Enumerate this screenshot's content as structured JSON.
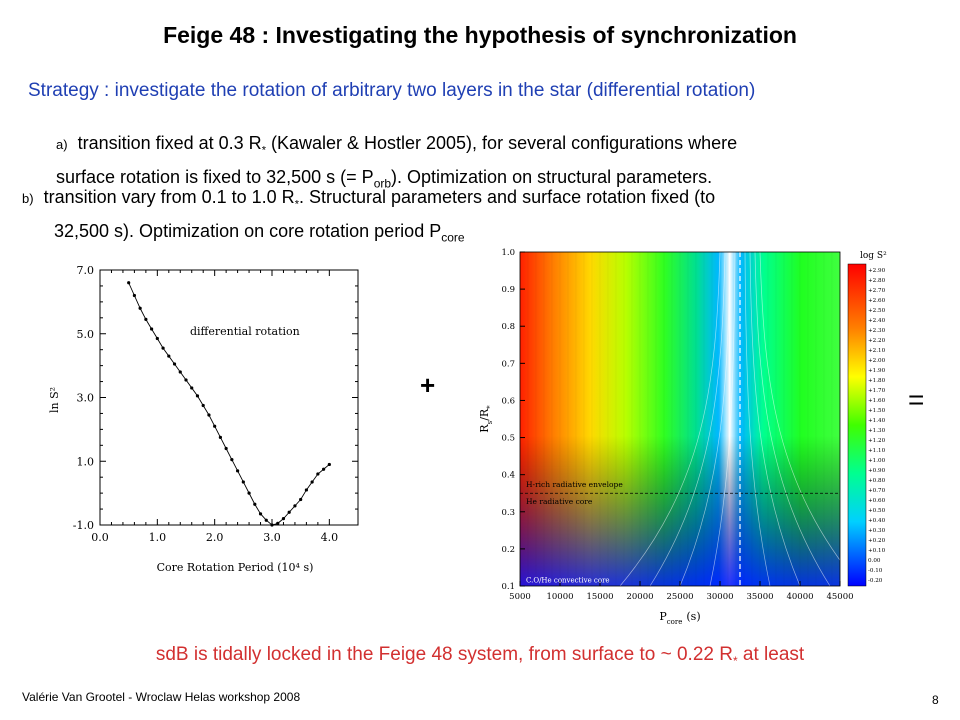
{
  "slide": {
    "title": "Feige 48 : Investigating the hypothesis of synchronization",
    "strategy": "Strategy : investigate the rotation of arbitrary two layers in the star (differential rotation)",
    "item_a": {
      "label": "a)",
      "line1": "transition fixed at 0.3 R",
      "line1_sub": "*",
      "line1_rest": " (Kawaler & Hostler 2005), for several configurations where",
      "line2_pre": "surface rotation is fixed to 32,500 s (",
      "line2_eq": "= P",
      "line2_sub": "orb",
      "line2_post": "). Optimization on structural parameters."
    },
    "item_b": {
      "label": "b)",
      "line1": "transition vary from 0.1 to 1.0 R",
      "line1_sub": "*",
      "line1_rest": ". Structural parameters and surface rotation fixed (to",
      "line2": "32,500 s). Optimization on core rotation period P",
      "line2_sub": "core"
    },
    "plus": "+",
    "equals": "=",
    "conclusion_pre": "sdB is tidally locked in the Feige 48 system, from surface to ~ 0.22 R",
    "conclusion_sub": "*",
    "conclusion_post": " at least",
    "footer": "Valérie Van Grootel - Wroclaw Helas workshop 2008",
    "page_number": "8"
  },
  "chart_data": [
    {
      "type": "line",
      "title": "",
      "annotation": "differential rotation",
      "xlabel": "Core Rotation Period (10⁴ s)",
      "ylabel": "ln S²",
      "xlim": [
        0.0,
        4.5
      ],
      "ylim": [
        -1.0,
        7.0
      ],
      "xticks": [
        "0.0",
        "1.0",
        "2.0",
        "3.0",
        "4.0"
      ],
      "yticks": [
        "-1.0",
        "1.0",
        "3.0",
        "5.0",
        "7.0"
      ],
      "x": [
        0.5,
        0.6,
        0.7,
        0.8,
        0.9,
        1.0,
        1.1,
        1.2,
        1.3,
        1.4,
        1.5,
        1.6,
        1.7,
        1.8,
        1.9,
        2.0,
        2.1,
        2.2,
        2.3,
        2.4,
        2.5,
        2.6,
        2.7,
        2.8,
        2.9,
        3.0,
        3.1,
        3.2,
        3.3,
        3.4,
        3.5,
        3.6,
        3.7,
        3.8,
        3.9,
        4.0
      ],
      "y": [
        6.6,
        6.2,
        5.8,
        5.45,
        5.15,
        4.85,
        4.55,
        4.3,
        4.05,
        3.8,
        3.55,
        3.3,
        3.05,
        2.75,
        2.45,
        2.1,
        1.75,
        1.4,
        1.05,
        0.7,
        0.35,
        0.0,
        -0.35,
        -0.65,
        -0.85,
        -1.0,
        -0.95,
        -0.8,
        -0.6,
        -0.4,
        -0.2,
        0.1,
        0.35,
        0.6,
        0.75,
        0.9
      ]
    },
    {
      "type": "heatmap",
      "title": "",
      "xlabel": "P",
      "xlabel_sub": "core",
      "xlabel_unit": "(s)",
      "ylabel": "R",
      "ylabel_sub": "s",
      "ylabel_rest": "/R",
      "ylabel_star": "*",
      "xlim": [
        5000,
        45000
      ],
      "ylim": [
        0.1,
        1.0
      ],
      "xticks": [
        "5000",
        "10000",
        "15000",
        "20000",
        "25000",
        "30000",
        "35000",
        "40000",
        "45000"
      ],
      "yticks": [
        "0.1",
        "0.2",
        "0.3",
        "0.4",
        "0.5",
        "0.6",
        "0.7",
        "0.8",
        "0.9",
        "1.0"
      ],
      "colorbar_title": "log S²",
      "colorbar_ticks": [
        "+2.90",
        "+2.80",
        "+2.70",
        "+2.60",
        "+2.50",
        "+2.40",
        "+2.30",
        "+2.20",
        "+2.10",
        "+2.00",
        "+1.90",
        "+1.80",
        "+1.70",
        "+1.60",
        "+1.50",
        "+1.40",
        "+1.30",
        "+1.20",
        "+1.10",
        "+1.00",
        "+0.90",
        "+0.80",
        "+0.70",
        "+0.60",
        "+0.50",
        "+0.40",
        "+0.30",
        "+0.20",
        "+0.10",
        "0.00",
        "-0.10",
        "-0.20"
      ],
      "annotations": [
        "H-rich radiative envelope",
        "He radiative core",
        "C.O/He convective core"
      ],
      "hline_y": 0.35,
      "vline_x": 32500,
      "colors": [
        "#0000ff",
        "#00a0ff",
        "#00ffff",
        "#00ff40",
        "#a0ff00",
        "#ffff00",
        "#ffa000",
        "#ff4000",
        "#ff0000"
      ]
    }
  ]
}
